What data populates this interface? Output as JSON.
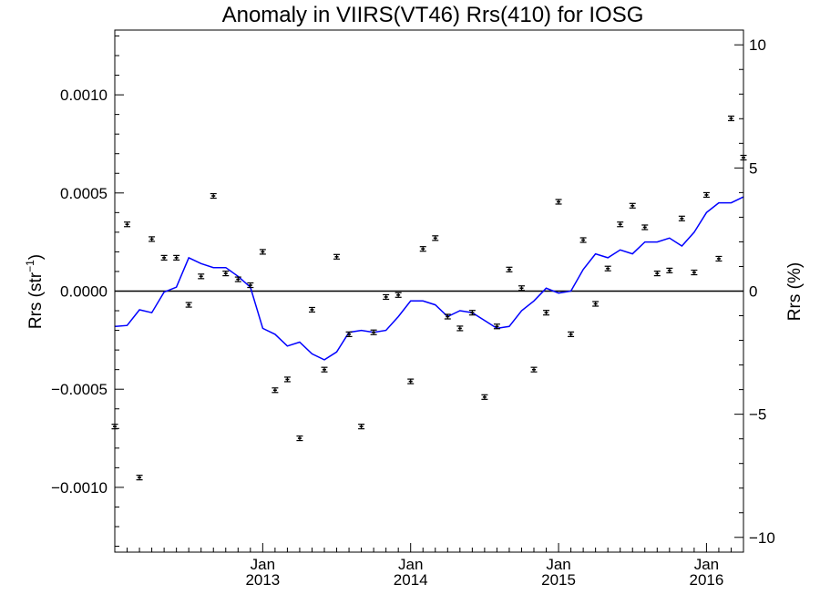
{
  "chart_data": {
    "type": "line",
    "title": "Anomaly in VIIRS(VT46) Rrs(410) for IOSG",
    "ylabel_left": {
      "base": "Rrs (str",
      "exponent": "−1",
      "close": ")"
    },
    "ylabel_right": "Rrs (%)",
    "xlabel": "",
    "ylim_left": [
      -0.00133,
      0.00133
    ],
    "ylim_right": [
      -10.6,
      10.6
    ],
    "x_range": [
      "2012-01-01",
      "2016-04-01"
    ],
    "grid": false,
    "zero_line": true,
    "left_ticks": [
      {
        "value": 0.001,
        "label": "0.0010"
      },
      {
        "value": 0.0005,
        "label": "0.0005"
      },
      {
        "value": 0.0,
        "label": "0.0000"
      },
      {
        "value": -0.0005,
        "label": "−0.0005"
      },
      {
        "value": -0.001,
        "label": "−0.0010"
      }
    ],
    "right_ticks": [
      {
        "value": 10,
        "label": "10"
      },
      {
        "value": 5,
        "label": "5"
      },
      {
        "value": 0,
        "label": "0"
      },
      {
        "value": -5,
        "label": "−5"
      },
      {
        "value": -10,
        "label": "−10"
      }
    ],
    "x_ticks": [
      {
        "date": "2013-01-01",
        "month": "Jan",
        "year": "2013"
      },
      {
        "date": "2014-01-01",
        "month": "Jan",
        "year": "2014"
      },
      {
        "date": "2015-01-01",
        "month": "Jan",
        "year": "2015"
      },
      {
        "date": "2016-01-01",
        "month": "Jan",
        "year": "2016"
      }
    ],
    "series": [
      {
        "type": "scatter_errorbar",
        "axis": "left",
        "color": "#000000",
        "points": [
          {
            "x": "2012-01",
            "y": -0.00069
          },
          {
            "x": "2012-02",
            "y": 0.00034
          },
          {
            "x": "2012-03",
            "y": -0.00095
          },
          {
            "x": "2012-04",
            "y": 0.000265
          },
          {
            "x": "2012-05",
            "y": 0.00017
          },
          {
            "x": "2012-06",
            "y": 0.00017
          },
          {
            "x": "2012-07",
            "y": -7e-05
          },
          {
            "x": "2012-08",
            "y": 7.5e-05
          },
          {
            "x": "2012-09",
            "y": 0.000485
          },
          {
            "x": "2012-10",
            "y": 9e-05
          },
          {
            "x": "2012-11",
            "y": 6e-05
          },
          {
            "x": "2012-12",
            "y": 3e-05
          },
          {
            "x": "2013-01",
            "y": 0.0002
          },
          {
            "x": "2013-02",
            "y": -0.000505
          },
          {
            "x": "2013-03",
            "y": -0.00045
          },
          {
            "x": "2013-04",
            "y": -0.00075
          },
          {
            "x": "2013-05",
            "y": -9.5e-05
          },
          {
            "x": "2013-06",
            "y": -0.0004
          },
          {
            "x": "2013-07",
            "y": 0.000175
          },
          {
            "x": "2013-08",
            "y": -0.00022
          },
          {
            "x": "2013-09",
            "y": -0.00069
          },
          {
            "x": "2013-10",
            "y": -0.00021
          },
          {
            "x": "2013-11",
            "y": -3e-05
          },
          {
            "x": "2013-12",
            "y": -2e-05
          },
          {
            "x": "2014-01",
            "y": -0.00046
          },
          {
            "x": "2014-02",
            "y": 0.000215
          },
          {
            "x": "2014-03",
            "y": 0.00027
          },
          {
            "x": "2014-04",
            "y": -0.00013
          },
          {
            "x": "2014-05",
            "y": -0.00019
          },
          {
            "x": "2014-06",
            "y": -0.00011
          },
          {
            "x": "2014-07",
            "y": -0.00054
          },
          {
            "x": "2014-08",
            "y": -0.00018
          },
          {
            "x": "2014-09",
            "y": 0.00011
          },
          {
            "x": "2014-10",
            "y": 1.5e-05
          },
          {
            "x": "2014-11",
            "y": -0.0004
          },
          {
            "x": "2014-12",
            "y": -0.00011
          },
          {
            "x": "2015-01",
            "y": 0.000455
          },
          {
            "x": "2015-02",
            "y": -0.00022
          },
          {
            "x": "2015-03",
            "y": 0.00026
          },
          {
            "x": "2015-04",
            "y": -6.5e-05
          },
          {
            "x": "2015-05",
            "y": 0.000115
          },
          {
            "x": "2015-06",
            "y": 0.00034
          },
          {
            "x": "2015-07",
            "y": 0.000435
          },
          {
            "x": "2015-08",
            "y": 0.000325
          },
          {
            "x": "2015-09",
            "y": 9e-05
          },
          {
            "x": "2015-10",
            "y": 0.000105
          },
          {
            "x": "2015-11",
            "y": 0.00037
          },
          {
            "x": "2015-12",
            "y": 9.5e-05
          },
          {
            "x": "2016-01",
            "y": 0.00049
          },
          {
            "x": "2016-02",
            "y": 0.000165
          },
          {
            "x": "2016-03",
            "y": 0.00088
          },
          {
            "x": "2016-04",
            "y": 0.00068
          }
        ]
      },
      {
        "type": "line",
        "axis": "left",
        "color": "#0000ff",
        "points": [
          {
            "x": "2012-01",
            "y": -0.00018
          },
          {
            "x": "2012-02",
            "y": -0.000175
          },
          {
            "x": "2012-03",
            "y": -9.5e-05
          },
          {
            "x": "2012-04",
            "y": -0.00011
          },
          {
            "x": "2012-05",
            "y": -5e-06
          },
          {
            "x": "2012-06",
            "y": 2e-05
          },
          {
            "x": "2012-07",
            "y": 0.00017
          },
          {
            "x": "2012-08",
            "y": 0.00014
          },
          {
            "x": "2012-09",
            "y": 0.00012
          },
          {
            "x": "2012-10",
            "y": 0.00012
          },
          {
            "x": "2012-11",
            "y": 7.5e-05
          },
          {
            "x": "2012-12",
            "y": 2e-05
          },
          {
            "x": "2013-01",
            "y": -0.00019
          },
          {
            "x": "2013-02",
            "y": -0.00022
          },
          {
            "x": "2013-03",
            "y": -0.00028
          },
          {
            "x": "2013-04",
            "y": -0.00026
          },
          {
            "x": "2013-05",
            "y": -0.00032
          },
          {
            "x": "2013-06",
            "y": -0.00035
          },
          {
            "x": "2013-07",
            "y": -0.00031
          },
          {
            "x": "2013-08",
            "y": -0.00021
          },
          {
            "x": "2013-09",
            "y": -0.0002
          },
          {
            "x": "2013-10",
            "y": -0.00021
          },
          {
            "x": "2013-11",
            "y": -0.0002
          },
          {
            "x": "2013-12",
            "y": -0.00013
          },
          {
            "x": "2014-01",
            "y": -5e-05
          },
          {
            "x": "2014-02",
            "y": -5e-05
          },
          {
            "x": "2014-03",
            "y": -7e-05
          },
          {
            "x": "2014-04",
            "y": -0.00013
          },
          {
            "x": "2014-05",
            "y": -0.0001
          },
          {
            "x": "2014-06",
            "y": -0.00011
          },
          {
            "x": "2014-07",
            "y": -0.00015
          },
          {
            "x": "2014-08",
            "y": -0.00019
          },
          {
            "x": "2014-09",
            "y": -0.00018
          },
          {
            "x": "2014-10",
            "y": -0.0001
          },
          {
            "x": "2014-11",
            "y": -5e-05
          },
          {
            "x": "2014-12",
            "y": 1.5e-05
          },
          {
            "x": "2015-01",
            "y": -1e-05
          },
          {
            "x": "2015-02",
            "y": 0.0
          },
          {
            "x": "2015-03",
            "y": 0.00011
          },
          {
            "x": "2015-04",
            "y": 0.00019
          },
          {
            "x": "2015-05",
            "y": 0.00017
          },
          {
            "x": "2015-06",
            "y": 0.00021
          },
          {
            "x": "2015-07",
            "y": 0.00019
          },
          {
            "x": "2015-08",
            "y": 0.00025
          },
          {
            "x": "2015-09",
            "y": 0.00025
          },
          {
            "x": "2015-10",
            "y": 0.00027
          },
          {
            "x": "2015-11",
            "y": 0.00023
          },
          {
            "x": "2015-12",
            "y": 0.0003
          },
          {
            "x": "2016-01",
            "y": 0.0004
          },
          {
            "x": "2016-02",
            "y": 0.00045
          },
          {
            "x": "2016-03",
            "y": 0.00045
          },
          {
            "x": "2016-04",
            "y": 0.00048
          }
        ]
      }
    ]
  }
}
